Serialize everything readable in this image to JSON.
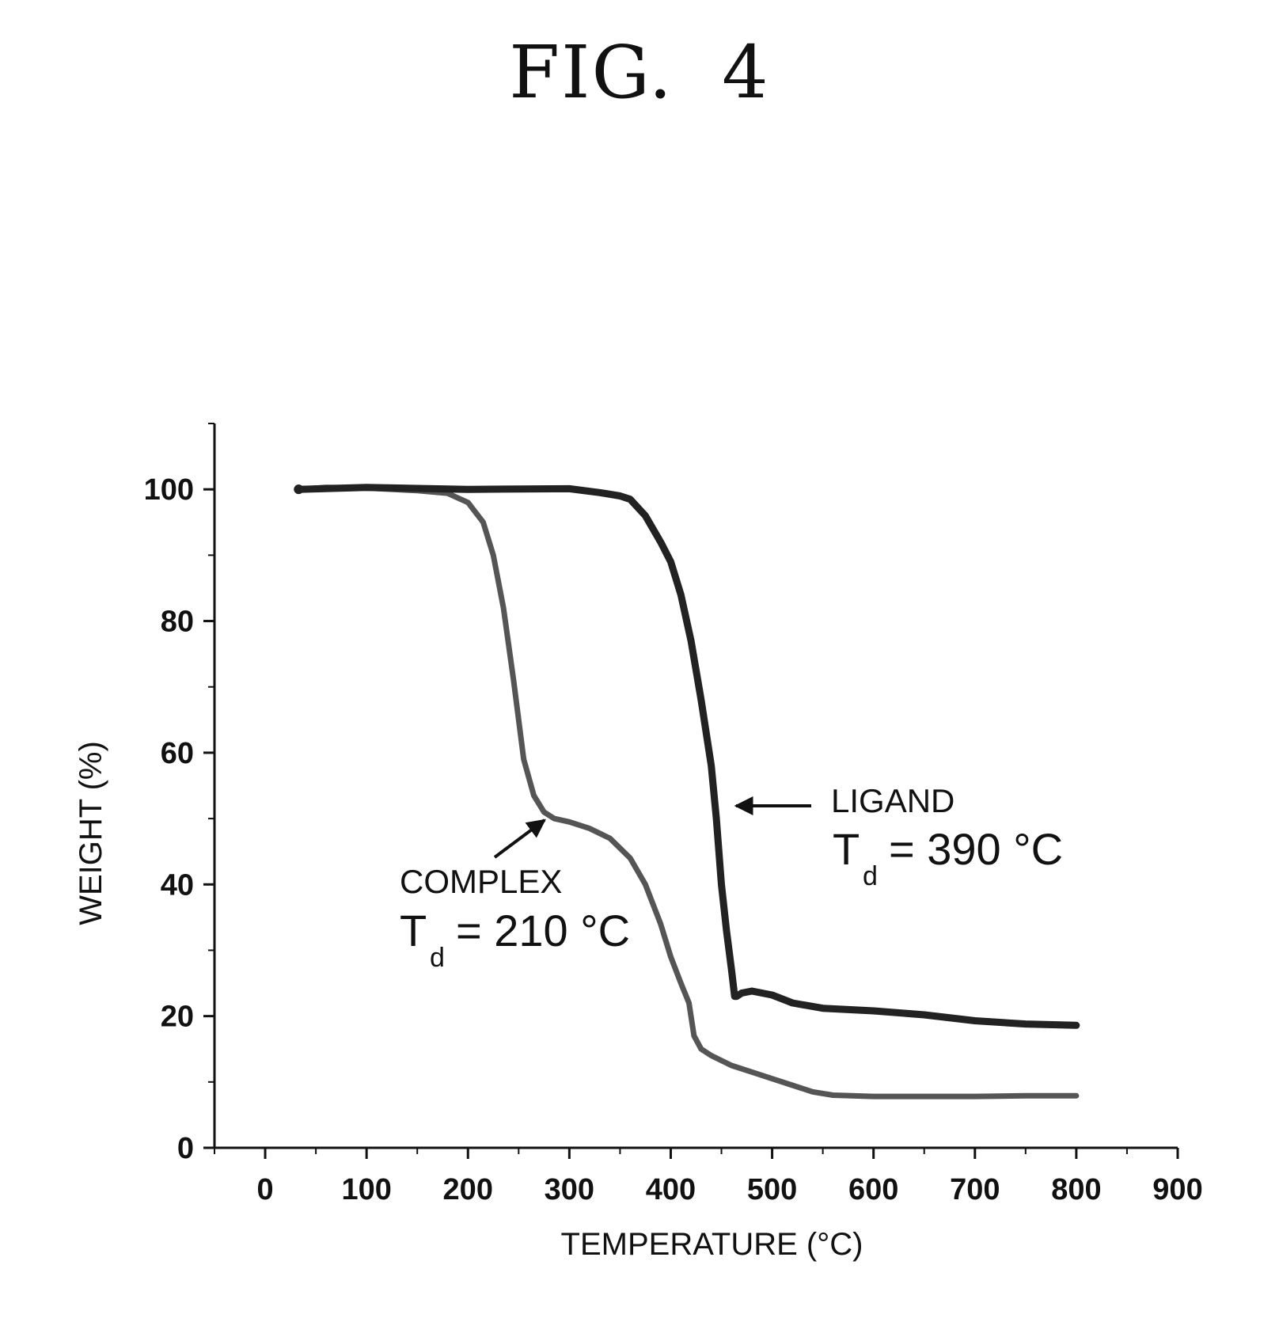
{
  "figure_title": "FIG. 4",
  "chart_data": {
    "type": "line",
    "xlabel": "TEMPERATURE (°C)",
    "ylabel": "WEIGHT (%)",
    "xlim": [
      -50,
      900
    ],
    "ylim": [
      0,
      110
    ],
    "xticks": [
      0,
      100,
      200,
      300,
      400,
      500,
      600,
      700,
      800,
      900
    ],
    "yticks": [
      0,
      20,
      40,
      60,
      80,
      100
    ],
    "grid": false,
    "series": [
      {
        "name": "COMPLEX",
        "color": "#555555",
        "x": [
          33,
          60,
          100,
          150,
          180,
          200,
          215,
          225,
          235,
          245,
          255,
          265,
          275,
          285,
          300,
          320,
          340,
          360,
          375,
          390,
          400,
          410,
          418,
          423,
          430,
          440,
          460,
          480,
          500,
          520,
          540,
          560,
          600,
          650,
          700,
          750,
          800
        ],
        "y": [
          100,
          100.3,
          100.2,
          99.8,
          99.4,
          98,
          95,
          90,
          82,
          71,
          59,
          53.5,
          51,
          50,
          49.5,
          48.5,
          47,
          44,
          40,
          34,
          29,
          25,
          22,
          17,
          15,
          14,
          12.5,
          11.5,
          10.5,
          9.5,
          8.5,
          8,
          7.8,
          7.8,
          7.8,
          7.9,
          7.9
        ]
      },
      {
        "name": "LIGAND",
        "color": "#222222",
        "x": [
          33,
          100,
          200,
          300,
          330,
          350,
          360,
          375,
          390,
          400,
          410,
          420,
          430,
          440,
          445,
          450,
          455,
          460,
          463,
          465,
          470,
          480,
          500,
          520,
          550,
          600,
          650,
          700,
          750,
          800
        ],
        "y": [
          100,
          100.3,
          100,
          100.1,
          99.5,
          99,
          98.5,
          96,
          92,
          89,
          84,
          77,
          68,
          58,
          50,
          40,
          33,
          27,
          23,
          23,
          23.5,
          23.8,
          23.2,
          22,
          21.2,
          20.8,
          20.2,
          19.3,
          18.8,
          18.6
        ]
      }
    ],
    "annotations": [
      {
        "label": "LIGAND",
        "td_text": "= 390 °C"
      },
      {
        "label": "COMPLEX",
        "td_text": "= 210 °C"
      }
    ]
  }
}
